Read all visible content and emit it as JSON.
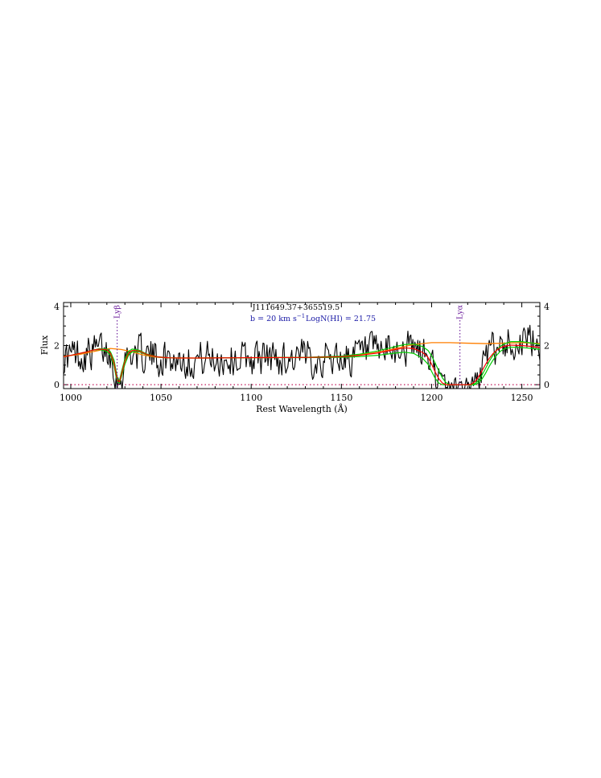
{
  "chart_data": {
    "type": "line",
    "title": "J111649.37+365519.5",
    "annotation_b": "b = 20 km s",
    "annotation_b_exp": "−1",
    "annotation_logn": "LogN(HI) = 21.75",
    "xlabel": "Rest Wavelength (Å)",
    "ylabel": "Flux",
    "xlim": [
      996,
      1260
    ],
    "ylim": [
      -0.2,
      4.2
    ],
    "x_ticks": [
      1000,
      1050,
      1100,
      1150,
      1200,
      1250
    ],
    "y_ticks": [
      0,
      2,
      4
    ],
    "line_markers": [
      {
        "label": "Lyβ",
        "x": 1025.7
      },
      {
        "label": "Lyα",
        "x": 1215.7
      }
    ],
    "zero_line_y": 0,
    "colors": {
      "spectrum": "#000000",
      "model": "#ff0000",
      "model_error": "#00cc00",
      "continuum": "#ff7f00",
      "markers": "#6a1b9a",
      "zero_line": "#c2185b",
      "blue_text": "#1a1aa6"
    },
    "continuum": {
      "x": [
        996,
        1005,
        1012,
        1018,
        1022,
        1028,
        1034,
        1040,
        1046,
        1052,
        1060,
        1080,
        1100,
        1120,
        1140,
        1150,
        1160,
        1170,
        1180,
        1190,
        1200,
        1210,
        1220,
        1230,
        1240,
        1250,
        1260
      ],
      "values": [
        1.45,
        1.55,
        1.68,
        1.8,
        1.85,
        1.8,
        1.68,
        1.52,
        1.42,
        1.38,
        1.36,
        1.37,
        1.38,
        1.39,
        1.4,
        1.44,
        1.52,
        1.65,
        1.85,
        2.05,
        2.15,
        2.15,
        2.12,
        2.1,
        2.12,
        2.15,
        2.1
      ]
    },
    "series": [
      {
        "x": [
          996,
          1000,
          1004,
          1008,
          1012,
          1016,
          1020,
          1022,
          1024,
          1025,
          1026,
          1027,
          1028,
          1030,
          1032,
          1034,
          1038,
          1042,
          1048,
          1055,
          1070,
          1100,
          1130,
          1150,
          1160,
          1170,
          1180,
          1185,
          1190,
          1195,
          1198,
          1200,
          1202,
          1204,
          1206,
          1208,
          1210,
          1215,
          1220,
          1222,
          1224,
          1226,
          1228,
          1230,
          1232,
          1234,
          1236,
          1238,
          1240,
          1244,
          1250,
          1256,
          1260
        ],
        "values": [
          1.42,
          1.5,
          1.58,
          1.66,
          1.76,
          1.82,
          1.78,
          1.6,
          1.1,
          0.6,
          0.2,
          0.15,
          0.5,
          1.2,
          1.6,
          1.75,
          1.72,
          1.55,
          1.42,
          1.37,
          1.36,
          1.38,
          1.39,
          1.43,
          1.5,
          1.62,
          1.8,
          1.88,
          1.85,
          1.65,
          1.4,
          1.05,
          0.65,
          0.3,
          0.08,
          0.0,
          0.0,
          0.0,
          0.0,
          0.02,
          0.15,
          0.4,
          0.72,
          1.05,
          1.35,
          1.58,
          1.76,
          1.88,
          1.96,
          2.02,
          2.0,
          1.95,
          1.9
        ]
      },
      {
        "x": [
          996,
          1000,
          1004,
          1008,
          1012,
          1016,
          1020,
          1022,
          1024,
          1025,
          1026,
          1027,
          1028,
          1030,
          1032,
          1034,
          1038,
          1042,
          1048,
          1055,
          1070,
          1100,
          1130,
          1150,
          1160,
          1170,
          1180,
          1185,
          1190,
          1195,
          1198,
          1200,
          1202,
          1204,
          1206,
          1208,
          1210,
          1215,
          1220,
          1222,
          1224,
          1226,
          1228,
          1230,
          1232,
          1234,
          1236,
          1238,
          1240,
          1244,
          1250,
          1256,
          1260
        ],
        "values": [
          1.42,
          1.5,
          1.58,
          1.66,
          1.76,
          1.84,
          1.82,
          1.68,
          1.25,
          0.75,
          0.3,
          0.22,
          0.62,
          1.32,
          1.7,
          1.82,
          1.76,
          1.57,
          1.43,
          1.37,
          1.36,
          1.38,
          1.4,
          1.46,
          1.56,
          1.72,
          1.95,
          2.05,
          2.08,
          1.95,
          1.75,
          1.48,
          1.1,
          0.7,
          0.35,
          0.1,
          0.0,
          0.0,
          0.0,
          0.0,
          0.05,
          0.22,
          0.5,
          0.85,
          1.2,
          1.5,
          1.75,
          1.95,
          2.08,
          2.2,
          2.2,
          2.12,
          2.05
        ]
      },
      {
        "x": [
          996,
          1000,
          1004,
          1008,
          1012,
          1016,
          1020,
          1022,
          1024,
          1025,
          1026,
          1027,
          1028,
          1030,
          1032,
          1034,
          1038,
          1042,
          1048,
          1055,
          1070,
          1100,
          1130,
          1150,
          1160,
          1170,
          1180,
          1185,
          1190,
          1195,
          1198,
          1200,
          1202,
          1204,
          1206,
          1208,
          1210,
          1215,
          1220,
          1222,
          1224,
          1226,
          1228,
          1230,
          1232,
          1234,
          1236,
          1238,
          1240,
          1244,
          1250,
          1256,
          1260
        ],
        "values": [
          1.42,
          1.5,
          1.58,
          1.66,
          1.76,
          1.8,
          1.7,
          1.5,
          0.95,
          0.45,
          0.12,
          0.1,
          0.38,
          1.05,
          1.5,
          1.68,
          1.68,
          1.53,
          1.41,
          1.37,
          1.36,
          1.38,
          1.38,
          1.4,
          1.44,
          1.5,
          1.62,
          1.66,
          1.6,
          1.35,
          1.05,
          0.68,
          0.32,
          0.08,
          0.0,
          0.0,
          0.0,
          0.0,
          0.0,
          0.0,
          0.0,
          0.1,
          0.3,
          0.6,
          0.95,
          1.25,
          1.5,
          1.7,
          1.82,
          1.92,
          1.9,
          1.85,
          1.8
        ]
      }
    ]
  }
}
